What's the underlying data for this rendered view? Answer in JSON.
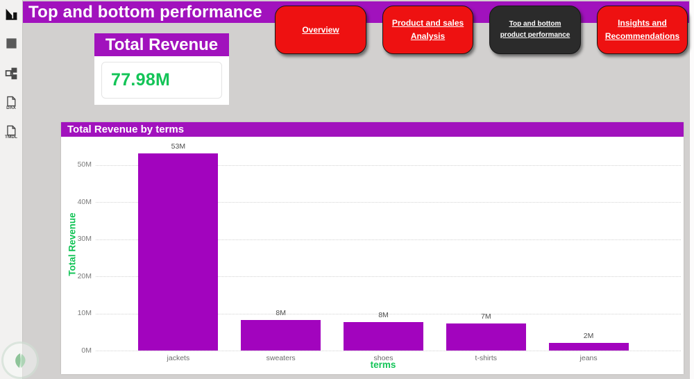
{
  "header": {
    "title": "Top and bottom performance"
  },
  "colors": {
    "purple": "#A112BD",
    "red": "#EE1111",
    "dark_button": "#2B2B2B",
    "green": "#13C457",
    "canvas": "#D2D0CF",
    "bar": "#A204BE"
  },
  "sidebar": {
    "items": [
      {
        "name": "report-view",
        "label": ""
      },
      {
        "name": "table-view",
        "label": ""
      },
      {
        "name": "model-view",
        "label": ""
      },
      {
        "name": "dax-query-view",
        "label": "DAX"
      },
      {
        "name": "tmdl-view",
        "label": "TMDL"
      }
    ]
  },
  "nav_buttons": [
    {
      "label": "Overview",
      "style": "red"
    },
    {
      "label": "Product and sales Analysis",
      "style": "red"
    },
    {
      "label": "Top and bottom product performance",
      "style": "dark"
    },
    {
      "label": "Insights and Recommendations",
      "style": "red"
    }
  ],
  "kpi_card": {
    "title": "Total Revenue",
    "value": "77.98M"
  },
  "chart_data": {
    "type": "bar",
    "title": "Total Revenue by terms",
    "categories": [
      "jackets",
      "sweaters",
      "shoes",
      "t-shirts",
      "jeans"
    ],
    "values": [
      53,
      8.2,
      7.6,
      7.2,
      2
    ],
    "data_labels": [
      "53M",
      "8M",
      "8M",
      "7M",
      "2M"
    ],
    "xlabel": "terms",
    "ylabel": "Total Revenue",
    "ylim": [
      0,
      55
    ],
    "yticks": [
      "0M",
      "10M",
      "20M",
      "30M",
      "40M",
      "50M"
    ],
    "ytick_values": [
      0,
      10,
      20,
      30,
      40,
      50
    ],
    "grid": "horizontal-dotted",
    "legend": "none"
  }
}
